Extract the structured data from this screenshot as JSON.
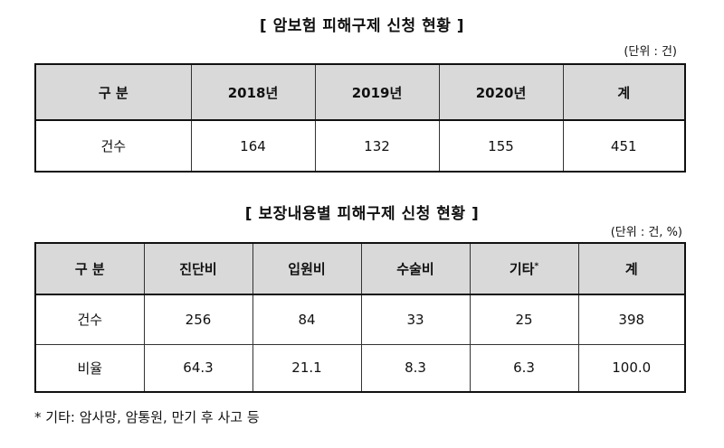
{
  "table1": {
    "title": "[ 암보험 피해구제 신청 현황 ]",
    "unit": "(단위 : 건)",
    "headers": [
      "구 분",
      "2018년",
      "2019년",
      "2020년",
      "계"
    ],
    "rows": [
      {
        "label": "건수",
        "values": [
          "164",
          "132",
          "155",
          "451"
        ]
      }
    ]
  },
  "table2": {
    "title": "[ 보장내용별 피해구제 신청 현황 ]",
    "unit": "(단위 : 건, %)",
    "headers": [
      "구 분",
      "진단비",
      "입원비",
      "수술비",
      "기타",
      "계"
    ],
    "header_sup": "*",
    "rows": [
      {
        "label": "건수",
        "values": [
          "256",
          "84",
          "33",
          "25",
          "398"
        ]
      },
      {
        "label": "비율",
        "values": [
          "64.3",
          "21.1",
          "8.3",
          "6.3",
          "100.0"
        ]
      }
    ]
  },
  "footnote": "* 기타: 암사망, 암통원, 만기 후 사고 등"
}
